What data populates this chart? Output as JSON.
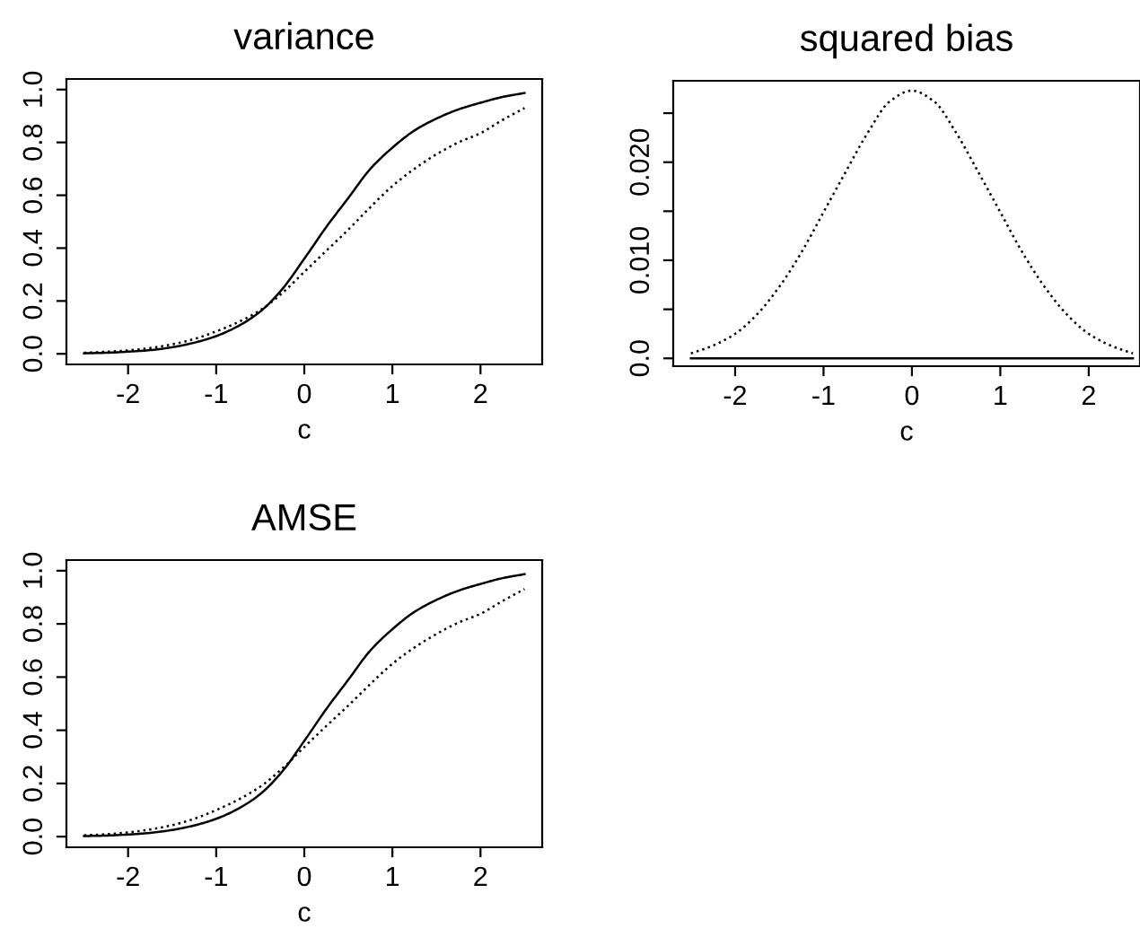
{
  "chart_data": [
    {
      "type": "line",
      "title": "variance",
      "xlabel": "c",
      "x": [
        -2.5,
        -2.25,
        -2,
        -1.75,
        -1.5,
        -1.25,
        -1,
        -0.75,
        -0.5,
        -0.25,
        0,
        0.25,
        0.5,
        0.75,
        1,
        1.25,
        1.5,
        1.75,
        2,
        2.25,
        2.5
      ],
      "series": [
        {
          "color": "#000000",
          "line_style": "solid",
          "values": [
            0.002,
            0.004,
            0.008,
            0.014,
            0.025,
            0.042,
            0.067,
            0.105,
            0.16,
            0.245,
            0.36,
            0.48,
            0.59,
            0.7,
            0.78,
            0.845,
            0.89,
            0.925,
            0.95,
            0.972,
            0.987
          ]
        },
        {
          "color": "#000000",
          "line_style": "dotted",
          "values": [
            0.004,
            0.008,
            0.013,
            0.022,
            0.036,
            0.056,
            0.085,
            0.12,
            0.165,
            0.23,
            0.31,
            0.39,
            0.47,
            0.555,
            0.635,
            0.7,
            0.755,
            0.8,
            0.835,
            0.885,
            0.93
          ]
        }
      ],
      "xlim": [
        -2.7,
        2.7
      ],
      "xticks": [
        -2,
        -1,
        0,
        1,
        2
      ],
      "ylim": [
        -0.04,
        1.04
      ],
      "yticks": [
        {
          "value": 0,
          "label": "0.0"
        },
        {
          "value": 0.2,
          "label": "0.2"
        },
        {
          "value": 0.4,
          "label": "0.4"
        },
        {
          "value": 0.6,
          "label": "0.6"
        },
        {
          "value": 0.8,
          "label": "0.8"
        },
        {
          "value": 1,
          "label": "1.0"
        }
      ]
    },
    {
      "type": "line",
      "title": "squared bias",
      "xlabel": "c",
      "x": [
        -2.5,
        -2.25,
        -2,
        -1.75,
        -1.5,
        -1.25,
        -1,
        -0.75,
        -0.5,
        -0.25,
        0,
        0.25,
        0.5,
        0.75,
        1,
        1.25,
        1.5,
        1.75,
        2,
        2.25,
        2.5
      ],
      "series": [
        {
          "color": "#000000",
          "line_style": "solid",
          "values": [
            0,
            0,
            0,
            0,
            0,
            0,
            0,
            0,
            0,
            0,
            0,
            0,
            0,
            0,
            0,
            0,
            0,
            0,
            0,
            0,
            0
          ]
        },
        {
          "color": "#000000",
          "line_style": "dotted",
          "values": [
            0.0005,
            0.0013,
            0.0025,
            0.0045,
            0.0073,
            0.0108,
            0.0149,
            0.019,
            0.023,
            0.0262,
            0.0273,
            0.0262,
            0.023,
            0.019,
            0.0149,
            0.0108,
            0.0073,
            0.0045,
            0.0025,
            0.0013,
            0.0005
          ]
        }
      ],
      "xlim": [
        -2.7,
        2.58
      ],
      "xticks": [
        -2,
        -1,
        0,
        1,
        2
      ],
      "ylim": [
        -0.0008,
        0.0283
      ],
      "yticks": [
        {
          "value": 0,
          "label": "0.0"
        },
        {
          "value": 0.005,
          "label": null
        },
        {
          "value": 0.01,
          "label": "0.010"
        },
        {
          "value": 0.015,
          "label": null
        },
        {
          "value": 0.02,
          "label": "0.020"
        },
        {
          "value": 0.025,
          "label": null
        }
      ]
    },
    {
      "type": "line",
      "title": "AMSE",
      "xlabel": "c",
      "x": [
        -2.5,
        -2.25,
        -2,
        -1.75,
        -1.5,
        -1.25,
        -1,
        -0.75,
        -0.5,
        -0.25,
        0,
        0.25,
        0.5,
        0.75,
        1,
        1.25,
        1.5,
        1.75,
        2,
        2.25,
        2.5
      ],
      "series": [
        {
          "color": "#000000",
          "line_style": "solid",
          "values": [
            0.002,
            0.004,
            0.008,
            0.014,
            0.025,
            0.042,
            0.067,
            0.105,
            0.16,
            0.245,
            0.36,
            0.48,
            0.59,
            0.7,
            0.78,
            0.845,
            0.89,
            0.925,
            0.95,
            0.972,
            0.987
          ]
        },
        {
          "color": "#000000",
          "line_style": "dotted",
          "values": [
            0.005,
            0.009,
            0.016,
            0.027,
            0.043,
            0.067,
            0.1,
            0.139,
            0.188,
            0.256,
            0.337,
            0.416,
            0.493,
            0.574,
            0.65,
            0.711,
            0.762,
            0.805,
            0.838,
            0.886,
            0.931
          ]
        }
      ],
      "xlim": [
        -2.7,
        2.7
      ],
      "xticks": [
        -2,
        -1,
        0,
        1,
        2
      ],
      "ylim": [
        -0.04,
        1.04
      ],
      "yticks": [
        {
          "value": 0,
          "label": "0.0"
        },
        {
          "value": 0.2,
          "label": "0.2"
        },
        {
          "value": 0.4,
          "label": "0.4"
        },
        {
          "value": 0.6,
          "label": "0.6"
        },
        {
          "value": 0.8,
          "label": "0.8"
        },
        {
          "value": 1,
          "label": "1.0"
        }
      ]
    }
  ]
}
